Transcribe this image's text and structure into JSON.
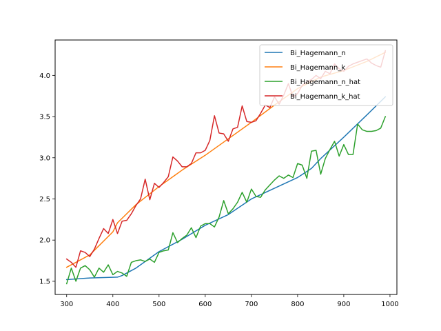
{
  "chart_data": {
    "type": "line",
    "title": "",
    "xlabel": "",
    "ylabel": "",
    "xlim": [
      275,
      1015
    ],
    "ylim": [
      1.34,
      4.43
    ],
    "x_ticks": [
      300,
      400,
      500,
      600,
      700,
      800,
      900,
      1000
    ],
    "y_ticks": [
      1.5,
      2.0,
      2.5,
      3.0,
      3.5,
      4.0
    ],
    "x_tick_labels": [
      "300",
      "400",
      "500",
      "600",
      "700",
      "800",
      "900",
      "1000"
    ],
    "y_tick_labels": [
      "1.5",
      "2.0",
      "2.5",
      "3.0",
      "3.5",
      "4.0"
    ],
    "grid": false,
    "legend_position": "top-right",
    "series": [
      {
        "name": "Bi_Hagemann_n",
        "color": "#1f77b4",
        "x": [
          300,
          350,
          410,
          420,
          450,
          500,
          550,
          600,
          650,
          700,
          750,
          800,
          830,
          850,
          900,
          950,
          990
        ],
        "y": [
          1.52,
          1.54,
          1.55,
          1.57,
          1.66,
          1.86,
          2.01,
          2.18,
          2.31,
          2.5,
          2.63,
          2.76,
          2.87,
          2.99,
          3.25,
          3.52,
          3.74
        ]
      },
      {
        "name": "Bi_Hagemann_k",
        "color": "#ff7f0e",
        "x": [
          300,
          350,
          400,
          410,
          450,
          500,
          550,
          600,
          650,
          700,
          750,
          800,
          850,
          900,
          950,
          990
        ],
        "y": [
          1.67,
          1.82,
          2.1,
          2.21,
          2.43,
          2.65,
          2.85,
          3.03,
          3.23,
          3.43,
          3.64,
          3.84,
          3.98,
          4.06,
          4.17,
          4.28
        ]
      },
      {
        "name": "Bi_Hagemann_n_hat",
        "color": "#2ca02c",
        "x": [
          300,
          310,
          320,
          330,
          340,
          350,
          360,
          370,
          380,
          390,
          400,
          410,
          420,
          430,
          440,
          450,
          460,
          470,
          480,
          490,
          500,
          510,
          520,
          530,
          540,
          550,
          560,
          570,
          580,
          590,
          600,
          610,
          620,
          630,
          640,
          650,
          660,
          670,
          680,
          690,
          700,
          710,
          720,
          730,
          740,
          750,
          760,
          770,
          780,
          790,
          800,
          810,
          820,
          830,
          840,
          850,
          860,
          870,
          880,
          890,
          900,
          910,
          920,
          930,
          940,
          950,
          960,
          970,
          980,
          990
        ],
        "y": [
          1.47,
          1.66,
          1.5,
          1.66,
          1.69,
          1.64,
          1.55,
          1.66,
          1.61,
          1.7,
          1.58,
          1.62,
          1.6,
          1.56,
          1.73,
          1.75,
          1.76,
          1.74,
          1.77,
          1.73,
          1.85,
          1.87,
          1.88,
          2.09,
          1.97,
          2.02,
          2.06,
          2.15,
          2.03,
          2.17,
          2.2,
          2.2,
          2.16,
          2.28,
          2.48,
          2.32,
          2.38,
          2.46,
          2.58,
          2.46,
          2.62,
          2.53,
          2.52,
          2.61,
          2.67,
          2.73,
          2.78,
          2.75,
          2.79,
          2.76,
          2.93,
          2.91,
          2.75,
          3.08,
          3.09,
          2.8,
          2.99,
          3.1,
          3.2,
          3.02,
          3.16,
          3.04,
          3.04,
          3.41,
          3.34,
          3.32,
          3.32,
          3.33,
          3.36,
          3.5
        ]
      },
      {
        "name": "Bi_Hagemann_k_hat",
        "color": "#d62728",
        "x": [
          300,
          310,
          320,
          330,
          340,
          350,
          360,
          370,
          380,
          390,
          400,
          410,
          420,
          430,
          440,
          450,
          460,
          470,
          480,
          490,
          500,
          510,
          520,
          530,
          540,
          550,
          560,
          570,
          580,
          590,
          600,
          610,
          620,
          630,
          640,
          650,
          660,
          670,
          680,
          690,
          700,
          710,
          720,
          730,
          740,
          750,
          760,
          770,
          780,
          790,
          800,
          810,
          820,
          830,
          840,
          850,
          860,
          870,
          880,
          890,
          900,
          910,
          920,
          930,
          940,
          950,
          960,
          970,
          980,
          990
        ],
        "y": [
          1.77,
          1.73,
          1.67,
          1.87,
          1.85,
          1.8,
          1.89,
          2.02,
          2.14,
          2.08,
          2.25,
          2.08,
          2.23,
          2.24,
          2.32,
          2.42,
          2.5,
          2.74,
          2.49,
          2.69,
          2.64,
          2.7,
          2.77,
          3.01,
          2.96,
          2.89,
          2.89,
          2.93,
          3.06,
          3.06,
          3.09,
          3.21,
          3.51,
          3.3,
          3.29,
          3.2,
          3.35,
          3.37,
          3.63,
          3.44,
          3.43,
          3.45,
          3.54,
          3.64,
          3.61,
          3.74,
          3.65,
          3.76,
          3.9,
          3.74,
          3.78,
          3.88,
          3.92,
          3.95,
          4.0,
          3.96,
          4.05,
          4.02,
          4.14,
          4.08,
          4.05,
          4.11,
          4.14,
          4.16,
          4.18,
          4.2,
          4.15,
          4.12,
          4.1,
          4.3
        ]
      }
    ]
  }
}
